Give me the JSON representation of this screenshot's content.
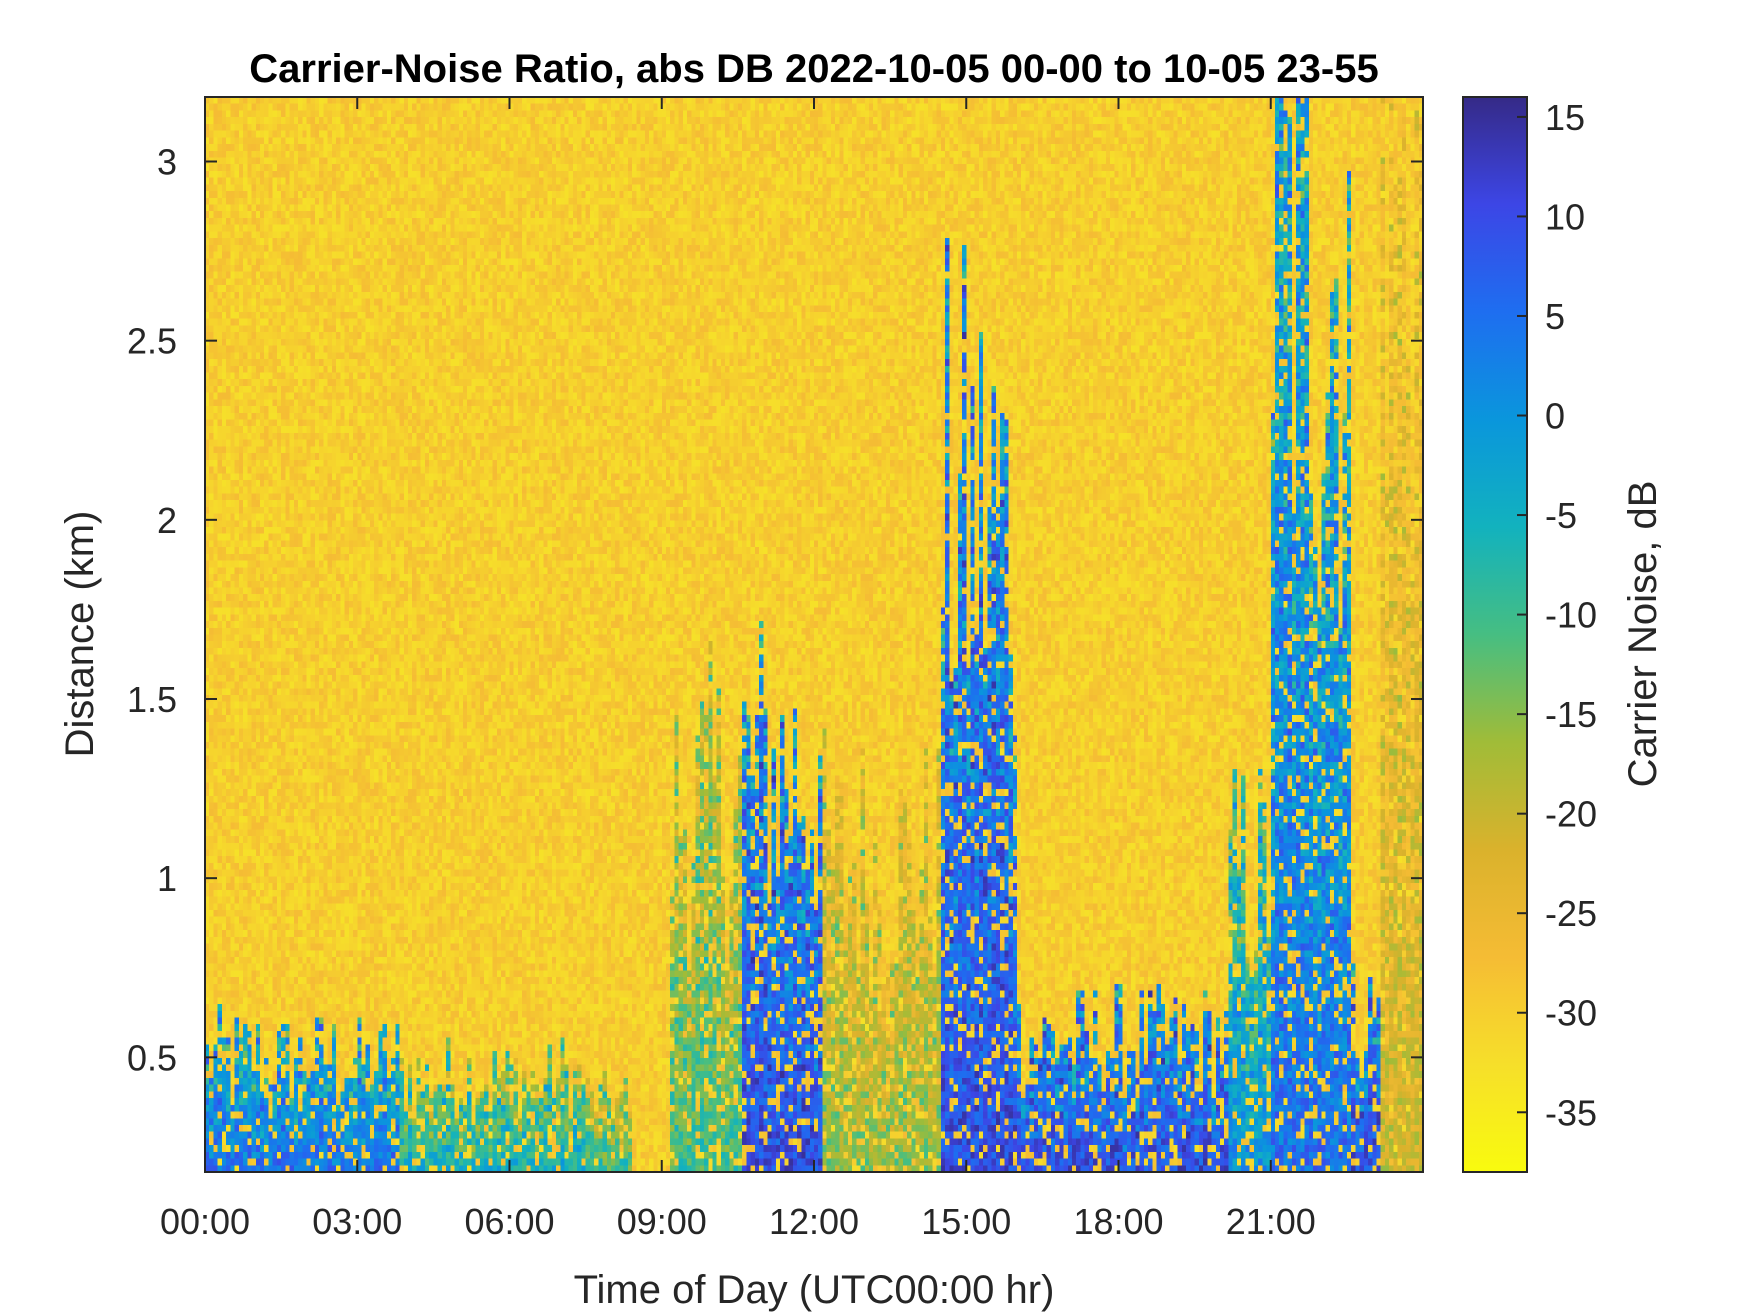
{
  "chart_data": {
    "type": "heatmap",
    "title": "Carrier-Noise Ratio, abs DB 2022-10-05 00-00 to 10-05 23-55",
    "xlabel": "Time of Day (UTC00:00 hr)",
    "ylabel": "Distance (km)",
    "colorbar_label": "Carrier Noise, dB",
    "x_range_hours": [
      0,
      24
    ],
    "y_range_km": [
      0.18,
      3.18
    ],
    "x_ticks": [
      {
        "hour": 0,
        "label": "00:00"
      },
      {
        "hour": 3,
        "label": "03:00"
      },
      {
        "hour": 6,
        "label": "06:00"
      },
      {
        "hour": 9,
        "label": "09:00"
      },
      {
        "hour": 12,
        "label": "12:00"
      },
      {
        "hour": 15,
        "label": "15:00"
      },
      {
        "hour": 18,
        "label": "18:00"
      },
      {
        "hour": 21,
        "label": "21:00"
      }
    ],
    "y_ticks": [
      {
        "value": 0.5,
        "label": "0.5"
      },
      {
        "value": 1,
        "label": "1"
      },
      {
        "value": 1.5,
        "label": "1.5"
      },
      {
        "value": 2,
        "label": "2"
      },
      {
        "value": 2.5,
        "label": "2.5"
      },
      {
        "value": 3,
        "label": "3"
      }
    ],
    "colorbar_range": [
      -38,
      16
    ],
    "colorbar_ticks": [
      {
        "value": 15,
        "label": "15"
      },
      {
        "value": 10,
        "label": "10"
      },
      {
        "value": 5,
        "label": "5"
      },
      {
        "value": 0,
        "label": "0"
      },
      {
        "value": -5,
        "label": "-5"
      },
      {
        "value": -10,
        "label": "-10"
      },
      {
        "value": -15,
        "label": "-15"
      },
      {
        "value": -20,
        "label": "-20"
      },
      {
        "value": -25,
        "label": "-25"
      },
      {
        "value": -30,
        "label": "-30"
      },
      {
        "value": -35,
        "label": "-35"
      }
    ],
    "colormap": "parula-reversed",
    "background_level_db": -30,
    "features": [
      {
        "start_hour": 0.0,
        "end_hour": 3.8,
        "top_km": 0.5,
        "peak_db": 5
      },
      {
        "start_hour": 3.8,
        "end_hour": 7.5,
        "top_km": 0.45,
        "peak_db": -5
      },
      {
        "start_hour": 7.5,
        "end_hour": 8.4,
        "top_km": 0.38,
        "peak_db": -10
      },
      {
        "start_hour": 9.2,
        "end_hour": 10.6,
        "top_km": 1.2,
        "peak_db": -10
      },
      {
        "start_hour": 10.6,
        "end_hour": 12.2,
        "top_km": 1.3,
        "peak_db": 10
      },
      {
        "start_hour": 12.2,
        "end_hour": 14.5,
        "top_km": 1.05,
        "peak_db": -15
      },
      {
        "start_hour": 14.5,
        "end_hour": 16.0,
        "top_km": 2.0,
        "peak_db": 10
      },
      {
        "start_hour": 16.0,
        "end_hour": 20.2,
        "top_km": 0.55,
        "peak_db": 10
      },
      {
        "start_hour": 20.2,
        "end_hour": 21.0,
        "top_km": 1.0,
        "peak_db": 0
      },
      {
        "start_hour": 21.0,
        "end_hour": 22.6,
        "top_km": 2.7,
        "peak_db": 5
      },
      {
        "start_hour": 22.6,
        "end_hour": 23.2,
        "top_km": 0.62,
        "peak_db": 10
      },
      {
        "start_hour": 23.2,
        "end_hour": 24.0,
        "top_km": 3.1,
        "peak_db": -20
      }
    ]
  }
}
